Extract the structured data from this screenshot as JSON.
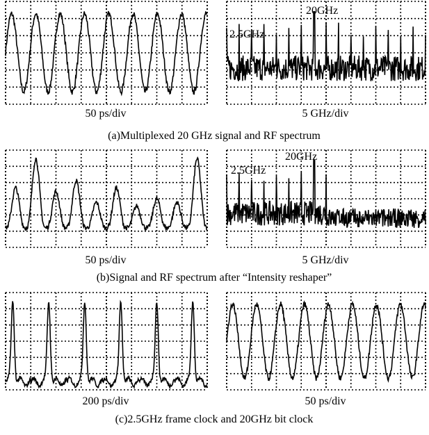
{
  "panels": [
    {
      "left": {
        "scale": "50 ps/div"
      },
      "right": {
        "scale": "5 GHz/div",
        "annotations": [
          "20GHz",
          "2.5GHz"
        ]
      },
      "caption": "(a)Multiplexed 20 GHz signal and RF spectrum"
    },
    {
      "left": {
        "scale": "50 ps/div"
      },
      "right": {
        "scale": "5 GHz/div",
        "annotations": [
          "20GHz",
          "2.5GHz"
        ]
      },
      "caption": "(b)Signal and RF spectrum after “Intensity reshaper”"
    },
    {
      "left": {
        "scale": "200 ps/div"
      },
      "right": {
        "scale": "50 ps/div"
      },
      "caption": "(c)2.5GHz frame clock and 20GHz bit clock"
    }
  ]
}
